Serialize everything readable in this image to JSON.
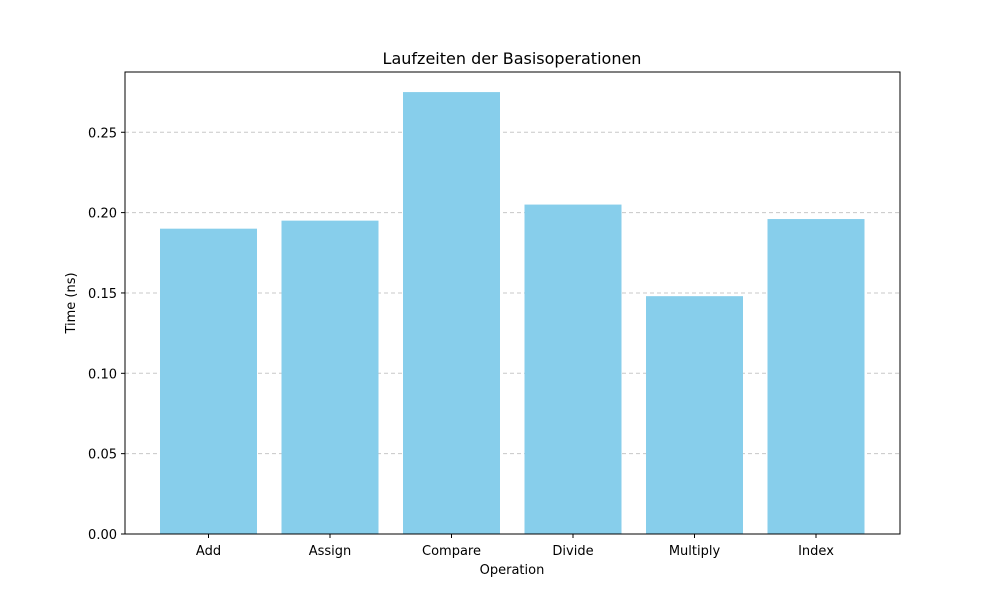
{
  "chart_data": {
    "type": "bar",
    "title": "Laufzeiten der Basisoperationen",
    "xlabel": "Operation",
    "ylabel": "Time (ns)",
    "categories": [
      "Add",
      "Assign",
      "Compare",
      "Divide",
      "Multiply",
      "Index"
    ],
    "values": [
      0.19,
      0.195,
      0.275,
      0.205,
      0.148,
      0.196
    ],
    "ylim": [
      0,
      0.2875
    ],
    "yticks": [
      "0.00",
      "0.05",
      "0.10",
      "0.15",
      "0.20",
      "0.25"
    ],
    "grid": "y-dashed",
    "bar_color": "#87ceeb",
    "grid_color": "#c8c8c8"
  }
}
